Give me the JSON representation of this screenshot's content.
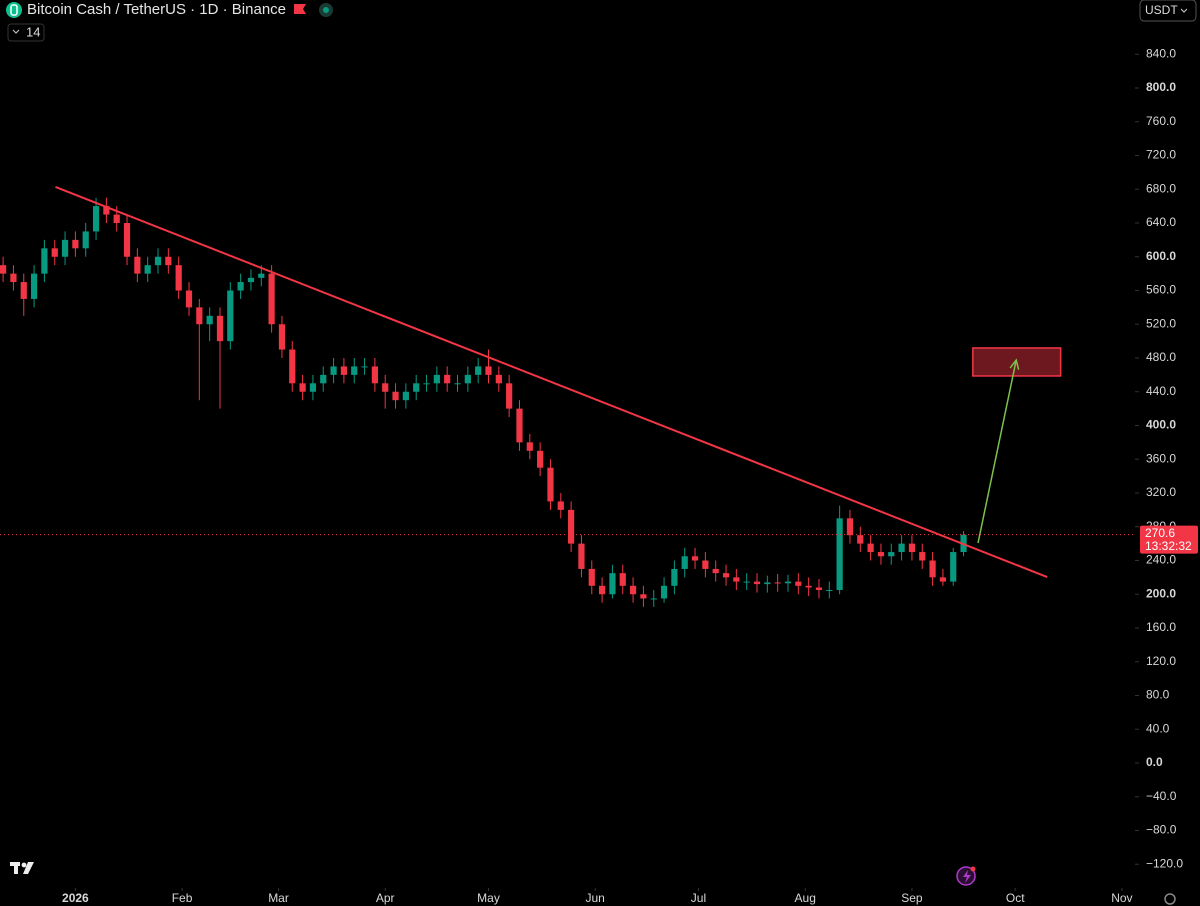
{
  "chart_data": {
    "type": "candlestick",
    "title": "Bitcoin Cash / TetherUS · 1D · Binance",
    "indicator_label": "14",
    "currency": "USDT",
    "categories": [
      null,
      null,
      null,
      null,
      null,
      null,
      null,
      null,
      null,
      null,
      null,
      null,
      null,
      null,
      null,
      null,
      null,
      null,
      null,
      null,
      null,
      null,
      null,
      null,
      null,
      null,
      null,
      null,
      null,
      null,
      null,
      null,
      null,
      null,
      null,
      null,
      null,
      null,
      null,
      null,
      null,
      null,
      null,
      null,
      null,
      null,
      null,
      null,
      null,
      null,
      null,
      null,
      null,
      null,
      null,
      null,
      null,
      null,
      null,
      null,
      null,
      null,
      null,
      null,
      null,
      null,
      null,
      null,
      null,
      null,
      null,
      null,
      null,
      null,
      null,
      null,
      null,
      null,
      null,
      null,
      null,
      null,
      null,
      null,
      null,
      null,
      null,
      null,
      null,
      null,
      null,
      null,
      null,
      null
    ],
    "open": [
      590,
      580,
      570,
      550,
      580,
      610,
      600,
      620,
      610,
      630,
      660,
      650,
      640,
      600,
      580,
      590,
      600,
      590,
      560,
      540,
      520,
      530,
      500,
      560,
      570,
      575,
      580,
      520,
      490,
      450,
      440,
      450,
      460,
      470,
      460,
      470,
      470,
      450,
      440,
      430,
      440,
      450,
      450,
      460,
      450,
      450,
      460,
      470,
      460,
      450,
      420,
      380,
      370,
      350,
      310,
      300,
      260,
      230,
      210,
      200,
      225,
      210,
      200,
      195,
      195,
      210,
      230,
      245,
      240,
      230,
      225,
      220,
      215,
      215,
      212,
      214,
      213,
      215,
      210,
      208,
      205,
      205,
      290,
      270,
      260,
      250,
      245,
      250,
      260,
      250,
      240,
      220,
      215,
      250
    ],
    "high": [
      600,
      590,
      580,
      590,
      620,
      620,
      630,
      630,
      640,
      670,
      670,
      660,
      650,
      610,
      600,
      610,
      610,
      600,
      570,
      550,
      540,
      540,
      570,
      580,
      585,
      590,
      590,
      530,
      500,
      460,
      460,
      470,
      480,
      480,
      480,
      480,
      480,
      460,
      450,
      450,
      460,
      460,
      470,
      470,
      460,
      470,
      480,
      490,
      470,
      460,
      430,
      390,
      380,
      360,
      320,
      310,
      270,
      240,
      220,
      235,
      235,
      220,
      210,
      205,
      220,
      240,
      255,
      255,
      250,
      240,
      235,
      230,
      225,
      225,
      222,
      224,
      223,
      225,
      220,
      218,
      215,
      305,
      300,
      280,
      270,
      260,
      260,
      270,
      270,
      260,
      250,
      230,
      255,
      275
    ],
    "low": [
      570,
      560,
      530,
      540,
      570,
      590,
      590,
      600,
      600,
      620,
      640,
      630,
      590,
      570,
      570,
      580,
      580,
      550,
      530,
      430,
      500,
      420,
      490,
      550,
      560,
      565,
      510,
      480,
      440,
      430,
      430,
      440,
      450,
      450,
      450,
      460,
      440,
      420,
      420,
      420,
      430,
      440,
      440,
      440,
      440,
      440,
      450,
      450,
      440,
      410,
      370,
      360,
      340,
      300,
      290,
      250,
      220,
      200,
      190,
      195,
      200,
      190,
      185,
      185,
      190,
      200,
      220,
      230,
      220,
      215,
      210,
      205,
      205,
      202,
      202,
      203,
      203,
      200,
      198,
      195,
      195,
      200,
      260,
      250,
      240,
      235,
      235,
      240,
      240,
      230,
      210,
      210,
      210,
      245
    ],
    "close": [
      580,
      570,
      550,
      580,
      610,
      600,
      620,
      610,
      630,
      660,
      650,
      640,
      600,
      580,
      590,
      600,
      590,
      560,
      540,
      520,
      530,
      500,
      560,
      570,
      575,
      580,
      520,
      490,
      450,
      440,
      450,
      460,
      470,
      460,
      470,
      470,
      450,
      440,
      430,
      440,
      450,
      450,
      460,
      450,
      450,
      460,
      470,
      460,
      450,
      420,
      380,
      370,
      350,
      310,
      300,
      260,
      230,
      210,
      200,
      225,
      210,
      200,
      195,
      195,
      210,
      230,
      245,
      240,
      230,
      225,
      220,
      215,
      215,
      212,
      214,
      213,
      215,
      210,
      208,
      205,
      205,
      290,
      270,
      260,
      250,
      245,
      250,
      260,
      250,
      240,
      220,
      215,
      250,
      270.6
    ],
    "up_color": "#089981",
    "down_color": "#f23645",
    "last_price": 270.6,
    "countdown": "13:32:32",
    "xlim": [
      -0.3,
      109.6
    ],
    "xticks": [
      {
        "value": 7,
        "label": "2026"
      },
      {
        "value": 17.33,
        "label": "Feb"
      },
      {
        "value": 26.67,
        "label": "Mar"
      },
      {
        "value": 37,
        "label": "Apr"
      },
      {
        "value": 47,
        "label": "May"
      },
      {
        "value": 57.33,
        "label": "Jun"
      },
      {
        "value": 67.33,
        "label": "Jul"
      },
      {
        "value": 77.67,
        "label": "Aug"
      },
      {
        "value": 88,
        "label": "Sep"
      },
      {
        "value": 98,
        "label": "Oct"
      },
      {
        "value": 108.33,
        "label": "Nov"
      }
    ],
    "ylim": [
      -169.5,
      904.3
    ],
    "yticks": [
      {
        "value": 840,
        "label": "840.0"
      },
      {
        "value": 800,
        "label": "800.0"
      },
      {
        "value": 760,
        "label": "760.0"
      },
      {
        "value": 720,
        "label": "720.0"
      },
      {
        "value": 680,
        "label": "680.0"
      },
      {
        "value": 640,
        "label": "640.0"
      },
      {
        "value": 600,
        "label": "600.0"
      },
      {
        "value": 560,
        "label": "560.0"
      },
      {
        "value": 520,
        "label": "520.0"
      },
      {
        "value": 480,
        "label": "480.0"
      },
      {
        "value": 440,
        "label": "440.0"
      },
      {
        "value": 400,
        "label": "400.0"
      },
      {
        "value": 360,
        "label": "360.0"
      },
      {
        "value": 320,
        "label": "320.0"
      },
      {
        "value": 280,
        "label": "280.0"
      },
      {
        "value": 240,
        "label": "240.0"
      },
      {
        "value": 200,
        "label": "200.0"
      },
      {
        "value": 160,
        "label": "160.0"
      },
      {
        "value": 120,
        "label": "120.0"
      },
      {
        "value": 80,
        "label": "80.0"
      },
      {
        "value": 40,
        "label": "40.0"
      },
      {
        "value": 0,
        "label": "0.0"
      },
      {
        "value": -40,
        "label": "−40.0"
      },
      {
        "value": -80,
        "label": "−80.0"
      },
      {
        "value": -120,
        "label": "−120.0"
      }
    ],
    "trendline": {
      "color": "#f23645",
      "start": {
        "x": 5.07,
        "price": 682.7
      },
      "end": {
        "x": 101.1,
        "price": 220.4
      }
    },
    "target_box": {
      "color": "#f23645",
      "x": [
        93.9,
        102.4
      ],
      "price": [
        458.7,
        491.9
      ]
    },
    "arrow": {
      "color": "#7cc24a",
      "start": {
        "x": 94.4,
        "price": 260.7
      },
      "end": {
        "x": 98.1,
        "price": 477.6
      }
    }
  }
}
